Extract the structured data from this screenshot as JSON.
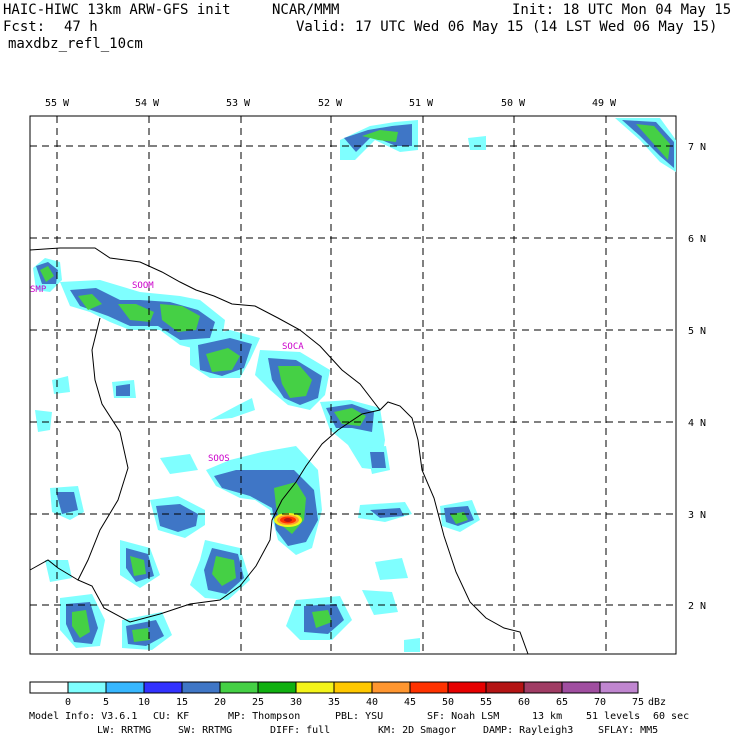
{
  "header": {
    "model": "HAIC-HIWC 13km ARW-GFS init",
    "org": "NCAR/MMM",
    "init": "Init: 18 UTC Mon 04 May 15",
    "fcst_label": "Fcst:",
    "fcst_hours": "47 h",
    "valid": "Valid: 17 UTC Wed 06 May 15 (14 LST Wed 06 May 15)",
    "field": "maxdbz_refl_10cm"
  },
  "map": {
    "lon_labels": [
      "55 W",
      "54 W",
      "53 W",
      "52 W",
      "51 W",
      "50 W",
      "49 W"
    ],
    "lat_labels": [
      "7 N",
      "6 N",
      "5 N",
      "4 N",
      "3 N",
      "2 N"
    ],
    "stations": [
      "SOOM",
      "SOCA",
      "SOOS"
    ],
    "station_partial": "SMP"
  },
  "colorbar": {
    "unit": "dBz",
    "ticks": [
      "0",
      "5",
      "10",
      "15",
      "20",
      "25",
      "30",
      "35",
      "40",
      "45",
      "50",
      "55",
      "60",
      "65",
      "70",
      "75"
    ],
    "colors": [
      "#ffffff",
      "#7fffff",
      "#37b7ff",
      "#3232ff",
      "#3f76c6",
      "#45d045",
      "#10b010",
      "#f4f41a",
      "#ffc800",
      "#ff9630",
      "#ff3200",
      "#e60000",
      "#b41414",
      "#a03c64",
      "#a04ea0",
      "#c086d0"
    ]
  },
  "footer": {
    "line1": [
      "Model Info: V3.6.1",
      "CU: KF",
      "MP: Thompson",
      "PBL: YSU",
      "SF: Noah LSM",
      "13 km",
      "51 levels",
      "60 sec"
    ],
    "line2": [
      "LW: RRTMG",
      "SW: RRTMG",
      "DIFF: full",
      "KM: 2D Smagor",
      "DAMP: Rayleigh3",
      "SFLAY: MM5"
    ]
  }
}
